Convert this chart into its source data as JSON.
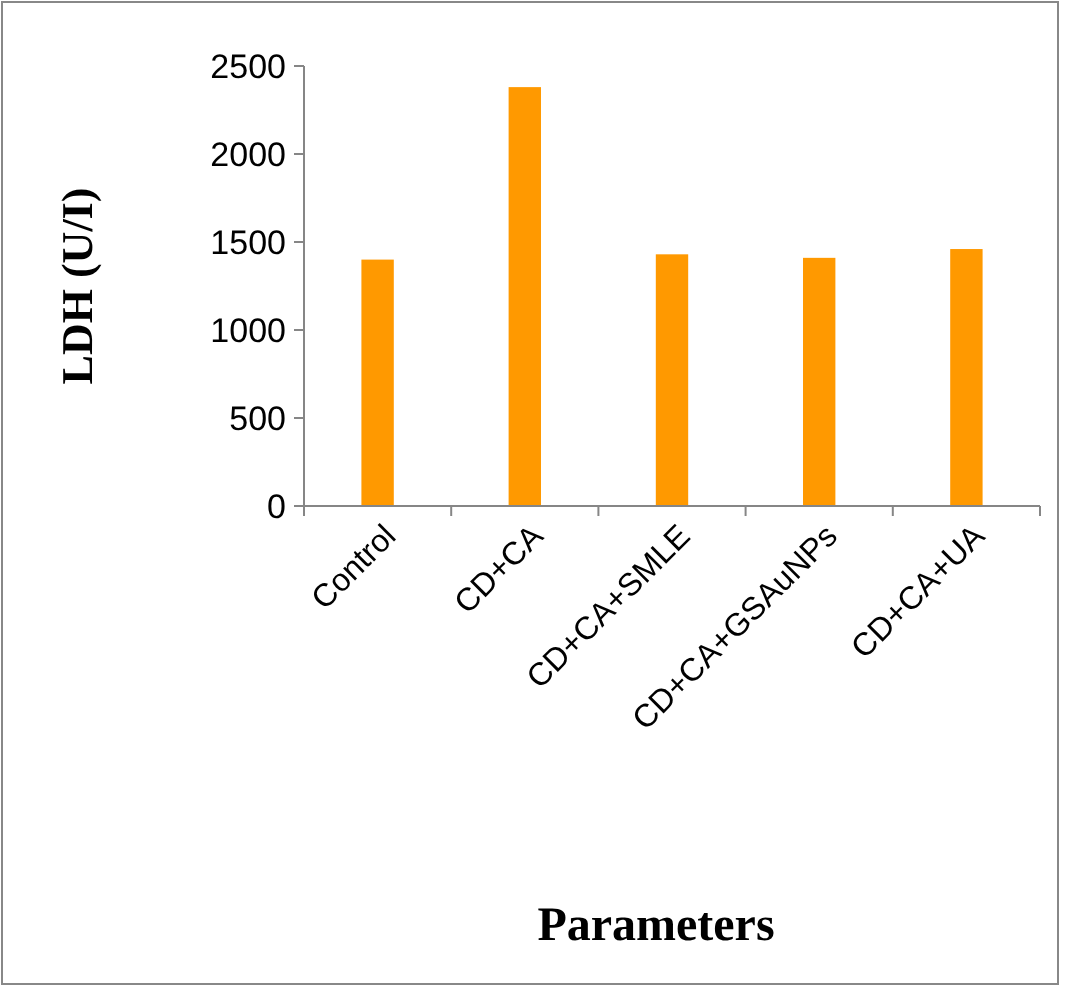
{
  "chart_data": {
    "type": "bar",
    "xlabel": "Parameters",
    "ylabel": "LDH (U/I)",
    "categories": [
      "Control",
      "CD+CA",
      "CD+CA+SMLE",
      "CD+CA+GSAuNPs",
      "CD+CA+UA"
    ],
    "values": [
      1400,
      2380,
      1430,
      1410,
      1460
    ],
    "color": "#ff9900",
    "ylim": [
      0,
      2500
    ],
    "yticks": [
      0,
      500,
      1000,
      1500,
      2000,
      2500
    ],
    "grid": false
  }
}
